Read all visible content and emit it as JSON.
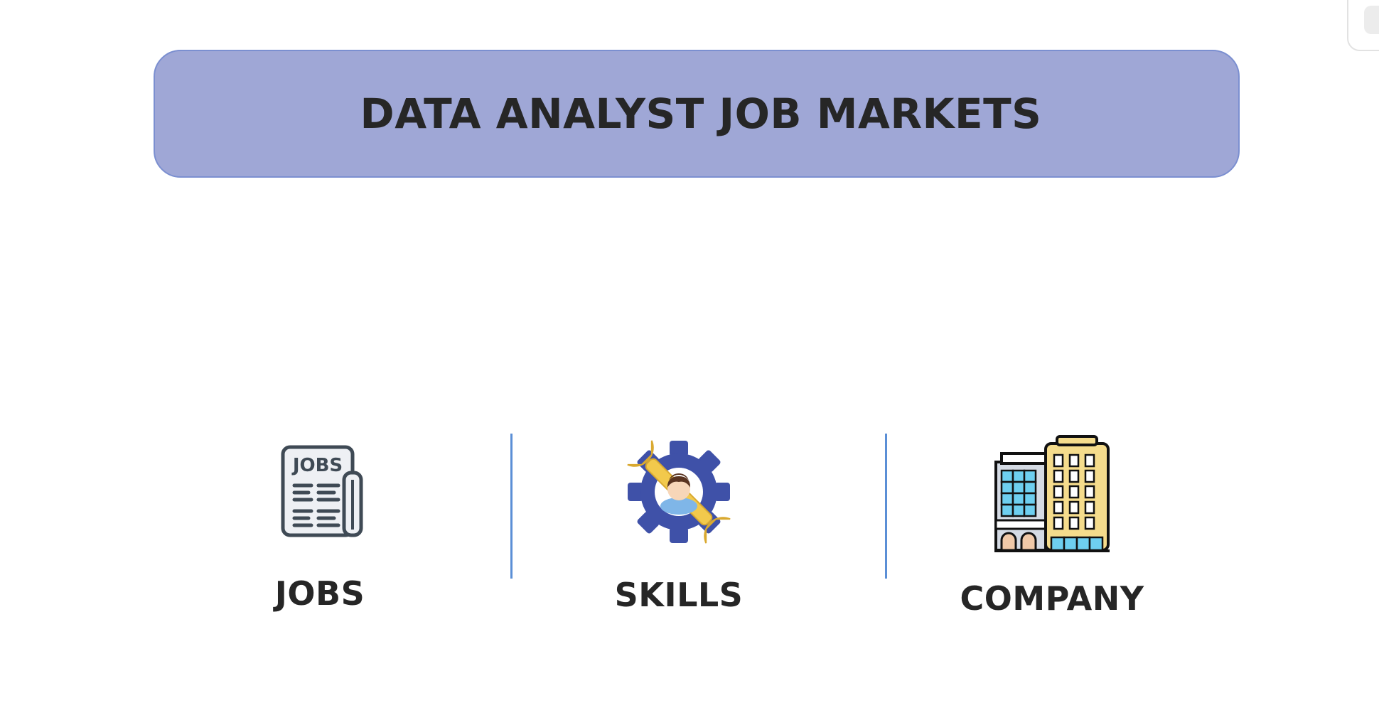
{
  "header": {
    "title": "DATA ANALYST JOB MARKETS"
  },
  "nav": {
    "items": [
      {
        "label": "JOBS",
        "icon": "newspaper-jobs-icon",
        "icon_text": "JOBS"
      },
      {
        "label": "SKILLS",
        "icon": "skills-gear-icon"
      },
      {
        "label": "COMPANY",
        "icon": "office-building-icon"
      }
    ]
  },
  "colors": {
    "banner_fill": "#9fa7d6",
    "banner_border": "#7b8fd0",
    "divider": "#5b8fd6",
    "text": "#262626",
    "gear": "#3f51a8",
    "wrench": "#f2c94c",
    "building_yellow": "#f5dc8c",
    "window_blue": "#6ecff0"
  }
}
